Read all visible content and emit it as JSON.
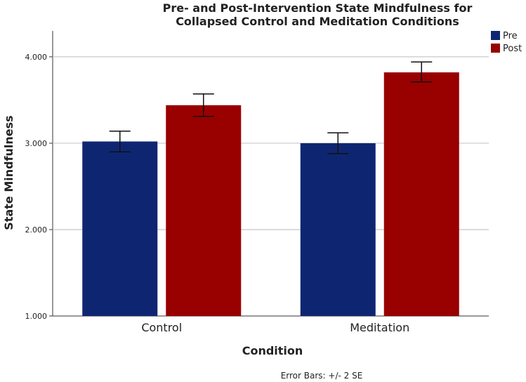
{
  "chart_data": {
    "type": "bar",
    "title_lines": [
      "Pre- and Post-Intervention State Mindfulness for",
      "Collapsed Control and Meditation Conditions"
    ],
    "categories": [
      "Control",
      "Meditation"
    ],
    "series": [
      {
        "name": "Pre",
        "color": "#0e2672",
        "values": [
          3.02,
          3.0
        ],
        "error_low": [
          2.9,
          2.88
        ],
        "error_high": [
          3.14,
          3.12
        ]
      },
      {
        "name": "Post",
        "color": "#990000",
        "values": [
          3.44,
          3.82
        ],
        "error_low": [
          3.31,
          3.71
        ],
        "error_high": [
          3.57,
          3.94
        ]
      }
    ],
    "xlabel": "Condition",
    "ylabel": "State Mindfulness",
    "ylim": [
      1.0,
      4.3
    ],
    "yticks": [
      1.0,
      2.0,
      3.0,
      4.0
    ],
    "ytick_labels": [
      "1.000",
      "2.000",
      "3.000",
      "4.000"
    ],
    "gridlines": true,
    "legend_position": "top-right",
    "note": "Error Bars: +/- 2 SE"
  }
}
